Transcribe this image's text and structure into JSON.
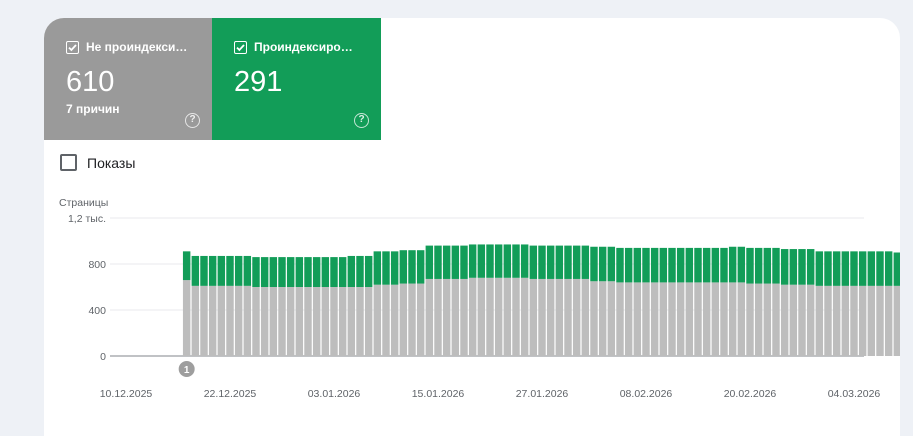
{
  "tiles": [
    {
      "title": "Не проиндексир…",
      "value": "610",
      "subtitle": "7 причин",
      "color": "#9a9a9a"
    },
    {
      "title": "Проиндексирова…",
      "value": "291",
      "subtitle": "",
      "color": "#129d58"
    }
  ],
  "impressions": {
    "label": "Показы",
    "checked": false
  },
  "chart_data": {
    "type": "bar",
    "stacked": true,
    "ylabel": "Страницы",
    "ytick_labels": [
      "0",
      "400",
      "800",
      "1,2 тыс."
    ],
    "yticks": [
      0,
      400,
      800,
      1200
    ],
    "ylim": [
      0,
      1200
    ],
    "xtick_labels": [
      "10.12.2025",
      "22.12.2025",
      "03.01.2026",
      "15.01.2026",
      "27.01.2026",
      "08.02.2026",
      "20.02.2026",
      "04.03.2026"
    ],
    "xtick_dates": [
      "2025-12-10",
      "2025-12-22",
      "2026-01-03",
      "2026-01-15",
      "2026-01-27",
      "2026-02-08",
      "2026-02-20",
      "2026-03-04"
    ],
    "first_date": "2025-12-17",
    "annotation": {
      "label": "1",
      "date": "2025-12-17"
    },
    "series": [
      {
        "name": "Не проиндексированы",
        "color": "#bdbdbd",
        "values": [
          660,
          610,
          610,
          610,
          610,
          610,
          610,
          610,
          600,
          600,
          600,
          600,
          600,
          600,
          600,
          600,
          600,
          600,
          600,
          600,
          600,
          600,
          620,
          620,
          620,
          630,
          630,
          630,
          670,
          670,
          670,
          670,
          670,
          680,
          680,
          680,
          680,
          680,
          680,
          680,
          670,
          670,
          670,
          670,
          670,
          670,
          670,
          650,
          650,
          650,
          640,
          640,
          640,
          640,
          640,
          640,
          640,
          640,
          640,
          640,
          640,
          640,
          640,
          640,
          640,
          630,
          630,
          630,
          630,
          620,
          620,
          620,
          620,
          610,
          610,
          610,
          610,
          610,
          610,
          610,
          610,
          610,
          610,
          610,
          610,
          610
        ]
      },
      {
        "name": "Проиндексированы",
        "color": "#129d58",
        "values": [
          250,
          260,
          260,
          260,
          260,
          260,
          260,
          260,
          260,
          260,
          260,
          260,
          260,
          260,
          260,
          260,
          260,
          260,
          260,
          270,
          270,
          270,
          290,
          290,
          290,
          290,
          290,
          290,
          290,
          290,
          290,
          290,
          290,
          290,
          290,
          290,
          290,
          290,
          290,
          290,
          290,
          290,
          290,
          290,
          290,
          290,
          290,
          300,
          300,
          300,
          300,
          300,
          300,
          300,
          300,
          300,
          300,
          300,
          300,
          300,
          300,
          300,
          300,
          310,
          310,
          310,
          310,
          310,
          310,
          310,
          310,
          310,
          310,
          300,
          300,
          300,
          300,
          300,
          300,
          300,
          300,
          300,
          290,
          290,
          290,
          290
        ]
      }
    ]
  }
}
